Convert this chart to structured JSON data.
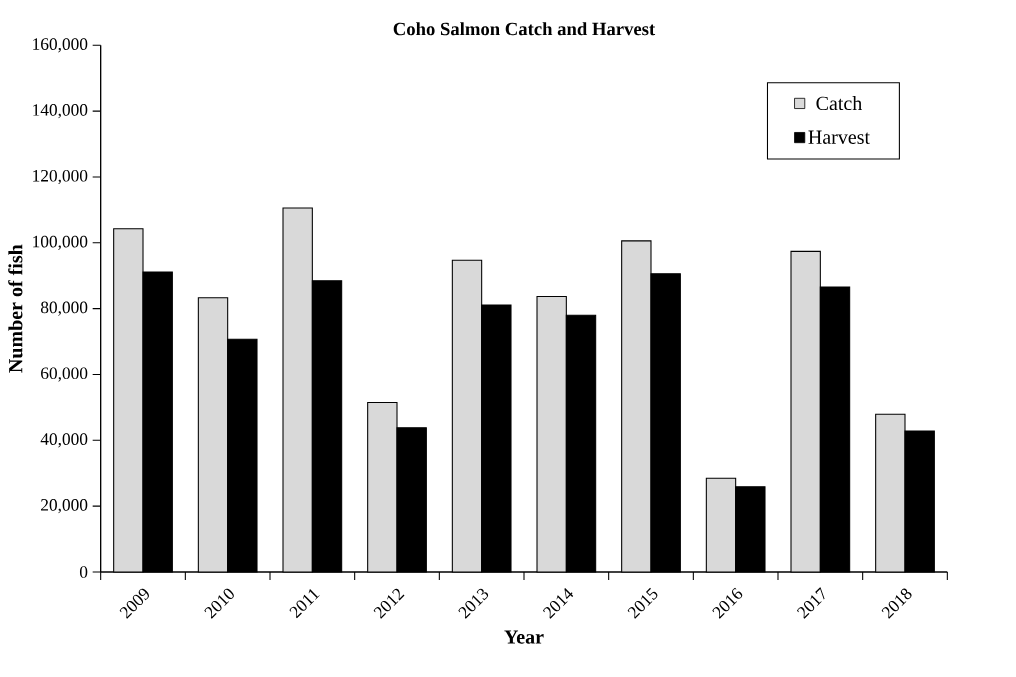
{
  "chart_data": {
    "type": "bar",
    "title": "Coho Salmon Catch and Harvest",
    "xlabel": "Year",
    "ylabel": "Number of fish",
    "categories": [
      "2009",
      "2010",
      "2011",
      "2012",
      "2013",
      "2014",
      "2015",
      "2016",
      "2017",
      "2018"
    ],
    "series": [
      {
        "name": "Catch",
        "color": "#d9d9d9",
        "values": [
          104300,
          83300,
          110600,
          51500,
          94700,
          83700,
          100600,
          28500,
          97400,
          47900
        ]
      },
      {
        "name": "Harvest",
        "color": "#000000",
        "values": [
          91100,
          70700,
          88500,
          43800,
          81100,
          78000,
          90600,
          25900,
          86600,
          42800
        ]
      }
    ],
    "ylim": [
      0,
      160000
    ],
    "yticks": [
      {
        "value": 0,
        "label": "0"
      },
      {
        "value": 20000,
        "label": "20,000"
      },
      {
        "value": 40000,
        "label": "40,000"
      },
      {
        "value": 60000,
        "label": "60,000"
      },
      {
        "value": 80000,
        "label": "80,000"
      },
      {
        "value": 100000,
        "label": "100,000"
      },
      {
        "value": 120000,
        "label": "120,000"
      },
      {
        "value": 140000,
        "label": "140,000"
      },
      {
        "value": 160000,
        "label": "160,000"
      }
    ],
    "grid": false,
    "legend": "top right"
  }
}
